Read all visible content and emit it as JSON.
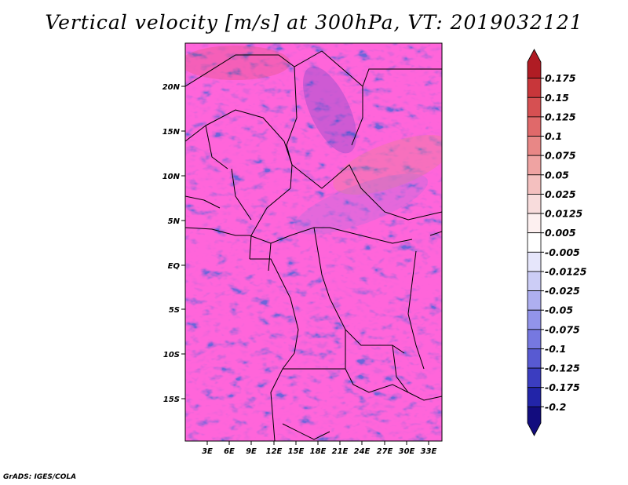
{
  "title": "Vertical velocity [m/s] at 300hPa, VT: 2019032121",
  "credit": "GrADS: IGES/COLA",
  "map": {
    "lat_ticks": [
      "20N",
      "15N",
      "10N",
      "5N",
      "EQ",
      "5S",
      "10S",
      "15S"
    ],
    "lon_ticks": [
      "3E",
      "6E",
      "9E",
      "12E",
      "15E",
      "18E",
      "21E",
      "24E",
      "27E",
      "30E",
      "33E"
    ]
  },
  "colorbar": {
    "levels": [
      "0.175",
      "0.15",
      "0.125",
      "0.1",
      "0.075",
      "0.05",
      "0.025",
      "0.0125",
      "0.005",
      "-0.005",
      "-0.0125",
      "-0.025",
      "-0.05",
      "-0.075",
      "-0.1",
      "-0.125",
      "-0.175",
      "-0.2"
    ],
    "colors": [
      "#b01c24",
      "#c8363a",
      "#d65052",
      "#e0696a",
      "#e88786",
      "#efa3a2",
      "#f4c0bf",
      "#f8dcdc",
      "#fdf0f0",
      "#ffffff",
      "#e6e6fb",
      "#cccdf6",
      "#aeaff0",
      "#9294ea",
      "#7678e0",
      "#585ad2",
      "#3b3dc0",
      "#2224a8",
      "#120c7e"
    ]
  }
}
